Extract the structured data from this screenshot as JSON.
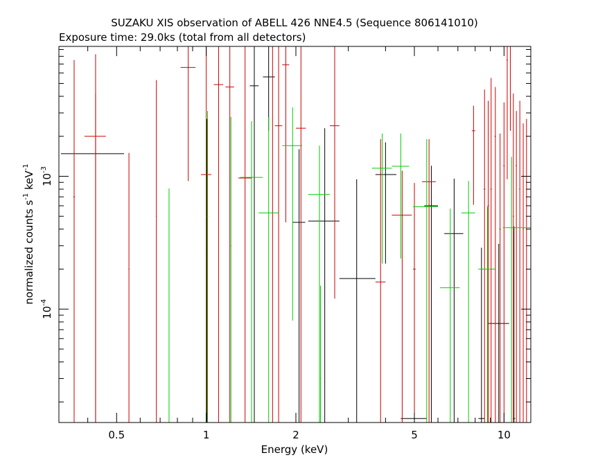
{
  "chart_data": {
    "type": "scatter",
    "title": "SUZAKU XIS observation of ABELL 426 NNE4.5 (Sequence 806141010)",
    "subtitle": "Exposure time: 29.0ks (total from all detectors)",
    "xlabel": "Energy (keV)",
    "ylabel_parts": [
      "normalized counts s",
      "-1",
      " keV",
      "-1"
    ],
    "x_scale": "log",
    "y_scale": "log",
    "xlim": [
      0.32,
      12.3
    ],
    "ylim": [
      1.4e-05,
      0.0095
    ],
    "x_ticks": [
      {
        "value": 0.5,
        "label": "0.5"
      },
      {
        "value": 1,
        "label": "1"
      },
      {
        "value": 2,
        "label": "2"
      },
      {
        "value": 5,
        "label": "5"
      },
      {
        "value": 10,
        "label": "10"
      }
    ],
    "y_ticks": [
      {
        "value": 0.0001,
        "base": "10",
        "exp": "-4"
      },
      {
        "value": 0.001,
        "base": "10",
        "exp": "-3"
      }
    ],
    "grid": false,
    "legend": "none",
    "series": [
      {
        "color": "#000000",
        "points": [
          {
            "x": 0.425,
            "xlo": 0.325,
            "xhi": 0.53,
            "y": 0.00148,
            "ylo": 1.4e-05,
            "yhi": 0.0042
          },
          {
            "x": 1.005,
            "xlo": 1.0,
            "xhi": 1.01,
            "y": 0.00028,
            "ylo": 1.4e-05,
            "yhi": 0.0027
          },
          {
            "x": 1.45,
            "xlo": 1.4,
            "xhi": 1.5,
            "y": 0.0048,
            "ylo": 1.4e-05,
            "yhi": 0.0095
          },
          {
            "x": 1.62,
            "xlo": 1.55,
            "xhi": 1.7,
            "y": 0.0056,
            "ylo": 0.0022,
            "yhi": 0.0095
          },
          {
            "x": 2.05,
            "xlo": 1.95,
            "xhi": 2.15,
            "y": 0.00045,
            "ylo": 1.4e-05,
            "yhi": 0.0016
          },
          {
            "x": 2.5,
            "xlo": 2.2,
            "xhi": 2.8,
            "y": 0.00046,
            "ylo": 1.4e-05,
            "yhi": 0.0023
          },
          {
            "x": 3.2,
            "xlo": 2.8,
            "xhi": 3.7,
            "y": 0.00017,
            "ylo": 1.4e-05,
            "yhi": 0.00095
          },
          {
            "x": 4.0,
            "xlo": 3.7,
            "xhi": 4.35,
            "y": 0.00103,
            "ylo": 0.00022,
            "yhi": 0.0018
          },
          {
            "x": 5.0,
            "xlo": 4.5,
            "xhi": 5.5,
            "y": 1.5e-05,
            "ylo": 1.4e-05,
            "yhi": 0.00089
          },
          {
            "x": 5.7,
            "xlo": 5.4,
            "xhi": 6.0,
            "y": 0.0006,
            "ylo": 1.4e-05,
            "yhi": 0.0012
          },
          {
            "x": 6.8,
            "xlo": 6.3,
            "xhi": 7.3,
            "y": 0.00037,
            "ylo": 1.4e-05,
            "yhi": 0.00096
          },
          {
            "x": 8.4,
            "xlo": 8.2,
            "xhi": 8.6,
            "y": 1.5e-05,
            "ylo": 1.4e-05,
            "yhi": 0.00029
          },
          {
            "x": 9.6,
            "xlo": 8.8,
            "xhi": 10.4,
            "y": 7.8e-05,
            "ylo": 1.4e-05,
            "yhi": 0.00031
          },
          {
            "x": 10.8,
            "xlo": 10.7,
            "xhi": 10.9,
            "y": 1.5e-05,
            "ylo": 1.4e-05,
            "yhi": 0.00042
          }
        ]
      },
      {
        "color": "#cc0000",
        "points": [
          {
            "x": 0.36,
            "xlo": 0.358,
            "xhi": 0.362,
            "y": 0.0007,
            "ylo": 1.4e-05,
            "yhi": 0.0075
          },
          {
            "x": 0.425,
            "xlo": 0.39,
            "xhi": 0.46,
            "y": 0.002,
            "ylo": 1.4e-05,
            "yhi": 0.0083
          },
          {
            "x": 0.55,
            "xlo": 0.548,
            "xhi": 0.552,
            "y": 0.0002,
            "ylo": 1.4e-05,
            "yhi": 0.0015
          },
          {
            "x": 0.68,
            "xlo": 0.678,
            "xhi": 0.682,
            "y": 0.0005,
            "ylo": 1.4e-05,
            "yhi": 0.0053
          },
          {
            "x": 0.87,
            "xlo": 0.82,
            "xhi": 0.92,
            "y": 0.0066,
            "ylo": 0.00092,
            "yhi": 0.0095
          },
          {
            "x": 1.0,
            "xlo": 0.96,
            "xhi": 1.04,
            "y": 0.00103,
            "ylo": 1.4e-05,
            "yhi": 0.0095
          },
          {
            "x": 1.1,
            "xlo": 1.06,
            "xhi": 1.14,
            "y": 0.0049,
            "ylo": 1.4e-05,
            "yhi": 0.0095
          },
          {
            "x": 1.2,
            "xlo": 1.16,
            "xhi": 1.24,
            "y": 0.0047,
            "ylo": 1.4e-05,
            "yhi": 0.0095
          },
          {
            "x": 1.35,
            "xlo": 1.28,
            "xhi": 1.42,
            "y": 0.00097,
            "ylo": 1.4e-05,
            "yhi": 0.0095
          },
          {
            "x": 1.67,
            "xlo": 1.6,
            "xhi": 1.73,
            "y": 0.0095,
            "ylo": 1.4e-05,
            "yhi": 0.0095
          },
          {
            "x": 1.75,
            "xlo": 1.7,
            "xhi": 1.8,
            "y": 0.0024,
            "ylo": 1.4e-05,
            "yhi": 0.0095
          },
          {
            "x": 1.85,
            "xlo": 1.8,
            "xhi": 1.9,
            "y": 0.0069,
            "ylo": 0.00045,
            "yhi": 0.0095
          },
          {
            "x": 2.08,
            "xlo": 2.0,
            "xhi": 2.16,
            "y": 0.0023,
            "ylo": 1.4e-05,
            "yhi": 0.0095
          },
          {
            "x": 2.7,
            "xlo": 2.6,
            "xhi": 2.8,
            "y": 0.0024,
            "ylo": 0.00012,
            "yhi": 0.0095
          },
          {
            "x": 3.85,
            "xlo": 3.7,
            "xhi": 4.0,
            "y": 0.00016,
            "ylo": 1.4e-05,
            "yhi": 0.0019
          },
          {
            "x": 4.55,
            "xlo": 4.2,
            "xhi": 4.9,
            "y": 0.00051,
            "ylo": 1.4e-05,
            "yhi": 0.0011
          },
          {
            "x": 5.0,
            "xlo": 4.95,
            "xhi": 5.05,
            "y": 0.0002,
            "ylo": 1.4e-05,
            "yhi": 0.00089
          },
          {
            "x": 5.6,
            "xlo": 5.3,
            "xhi": 5.9,
            "y": 0.00091,
            "ylo": 1.4e-05,
            "yhi": 0.0019
          },
          {
            "x": 7.9,
            "xlo": 7.8,
            "xhi": 8.0,
            "y": 0.0022,
            "ylo": 0.00061,
            "yhi": 0.0034
          },
          {
            "x": 8.6,
            "xlo": 8.55,
            "xhi": 8.65,
            "y": 0.0008,
            "ylo": 1.4e-05,
            "yhi": 0.0045
          },
          {
            "x": 8.85,
            "xlo": 8.8,
            "xhi": 8.9,
            "y": 0.0006,
            "ylo": 1.4e-05,
            "yhi": 0.0037
          },
          {
            "x": 9.05,
            "xlo": 9.0,
            "xhi": 9.1,
            "y": 0.0008,
            "ylo": 1.4e-05,
            "yhi": 0.0055
          },
          {
            "x": 9.35,
            "xlo": 9.3,
            "xhi": 9.4,
            "y": 0.002,
            "ylo": 1.4e-05,
            "yhi": 0.0047
          },
          {
            "x": 9.7,
            "xlo": 9.65,
            "xhi": 9.75,
            "y": 0.0004,
            "ylo": 1.4e-05,
            "yhi": 0.0021
          },
          {
            "x": 10.0,
            "xlo": 9.95,
            "xhi": 10.05,
            "y": 0.0012,
            "ylo": 1.4e-05,
            "yhi": 0.0036
          },
          {
            "x": 10.25,
            "xlo": 10.2,
            "xhi": 10.3,
            "y": 0.0075,
            "ylo": 0.00095,
            "yhi": 0.0095
          },
          {
            "x": 10.5,
            "xlo": 10.45,
            "xhi": 10.55,
            "y": 0.0095,
            "ylo": 0.0022,
            "yhi": 0.0095
          },
          {
            "x": 10.75,
            "xlo": 10.7,
            "xhi": 10.8,
            "y": 0.0005,
            "ylo": 1.4e-05,
            "yhi": 0.0042
          },
          {
            "x": 11.0,
            "xlo": 10.95,
            "xhi": 11.05,
            "y": 0.0012,
            "ylo": 1.4e-05,
            "yhi": 0.0031
          },
          {
            "x": 11.3,
            "xlo": 11.25,
            "xhi": 11.35,
            "y": 0.0008,
            "ylo": 1.4e-05,
            "yhi": 0.0037
          },
          {
            "x": 11.6,
            "xlo": 11.55,
            "xhi": 11.65,
            "y": 0.0004,
            "ylo": 1.4e-05,
            "yhi": 0.0025
          },
          {
            "x": 11.9,
            "xlo": 11.85,
            "xhi": 11.95,
            "y": 0.0007,
            "ylo": 1.4e-05,
            "yhi": 0.0027
          }
        ]
      },
      {
        "color": "#00cc00",
        "points": [
          {
            "x": 0.75,
            "xlo": 0.748,
            "xhi": 0.752,
            "y": 0.00012,
            "ylo": 1.4e-05,
            "yhi": 0.00081
          },
          {
            "x": 1.01,
            "xlo": 1.005,
            "xhi": 1.015,
            "y": 0.0005,
            "ylo": 1.4e-05,
            "yhi": 0.0031
          },
          {
            "x": 1.21,
            "xlo": 1.205,
            "xhi": 1.215,
            "y": 0.0003,
            "ylo": 1.4e-05,
            "yhi": 0.0028
          },
          {
            "x": 1.42,
            "xlo": 1.3,
            "xhi": 1.55,
            "y": 0.00098,
            "ylo": 1.4e-05,
            "yhi": 0.0026
          },
          {
            "x": 1.62,
            "xlo": 1.5,
            "xhi": 1.75,
            "y": 0.00053,
            "ylo": 1.4e-05,
            "yhi": 0.0028
          },
          {
            "x": 1.95,
            "xlo": 1.8,
            "xhi": 2.1,
            "y": 0.0017,
            "ylo": 8.2e-05,
            "yhi": 0.0033
          },
          {
            "x": 2.4,
            "xlo": 2.2,
            "xhi": 2.6,
            "y": 0.00073,
            "ylo": 1.4e-05,
            "yhi": 0.0017
          },
          {
            "x": 2.42,
            "xlo": 2.41,
            "xhi": 2.43,
            "y": 3e-05,
            "ylo": 1.4e-05,
            "yhi": 0.00015
          },
          {
            "x": 3.9,
            "xlo": 3.6,
            "xhi": 4.2,
            "y": 0.00115,
            "ylo": 0.00022,
            "yhi": 0.0021
          },
          {
            "x": 4.5,
            "xlo": 4.2,
            "xhi": 4.8,
            "y": 0.00119,
            "ylo": 0.00024,
            "yhi": 0.0021
          },
          {
            "x": 5.5,
            "xlo": 4.95,
            "xhi": 6.0,
            "y": 0.00059,
            "ylo": 1.4e-05,
            "yhi": 0.0019
          },
          {
            "x": 6.6,
            "xlo": 6.1,
            "xhi": 7.1,
            "y": 0.000145,
            "ylo": 1.4e-05,
            "yhi": 0.00057
          },
          {
            "x": 7.6,
            "xlo": 7.2,
            "xhi": 8.0,
            "y": 0.00053,
            "ylo": 1.4e-05,
            "yhi": 0.00092
          },
          {
            "x": 8.8,
            "xlo": 8.2,
            "xhi": 9.4,
            "y": 0.0002,
            "ylo": 1.4e-05,
            "yhi": 0.00059
          },
          {
            "x": 10.6,
            "xlo": 9.9,
            "xhi": 12.3,
            "y": 0.00041,
            "ylo": 1.4e-05,
            "yhi": 0.0014
          }
        ]
      }
    ]
  }
}
